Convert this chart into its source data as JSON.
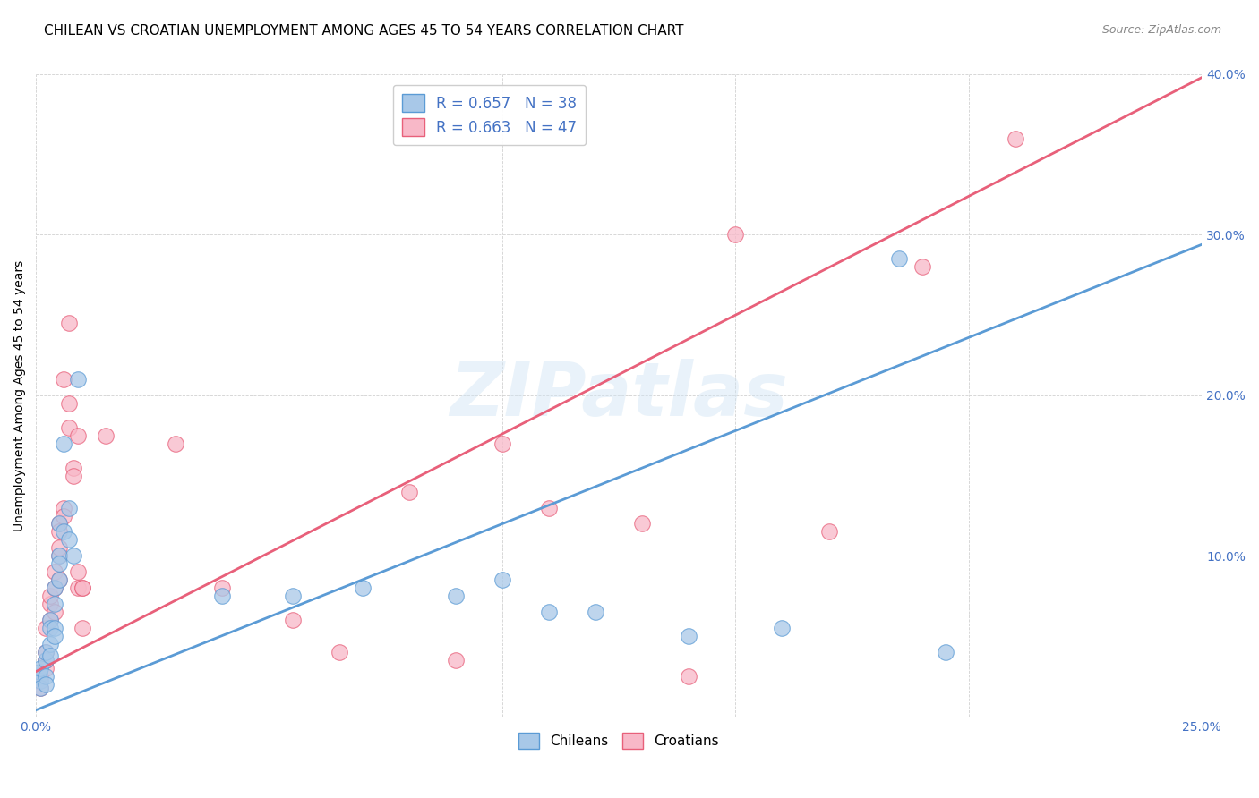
{
  "title": "CHILEAN VS CROATIAN UNEMPLOYMENT AMONG AGES 45 TO 54 YEARS CORRELATION CHART",
  "source": "Source: ZipAtlas.com",
  "ylabel": "Unemployment Among Ages 45 to 54 years",
  "xlim": [
    0.0,
    0.25
  ],
  "ylim": [
    0.0,
    0.4
  ],
  "xticks": [
    0.0,
    0.05,
    0.1,
    0.15,
    0.2,
    0.25
  ],
  "yticks": [
    0.0,
    0.1,
    0.2,
    0.3,
    0.4
  ],
  "chilean_color": "#a8c8e8",
  "croatian_color": "#f8b8c8",
  "chilean_line_color": "#5b9bd5",
  "croatian_line_color": "#e8607a",
  "legend_R_chilean": "0.657",
  "legend_N_chilean": "38",
  "legend_R_croatian": "0.663",
  "legend_N_croatian": "47",
  "watermark": "ZIPatlas",
  "chilean_slope": 1.16,
  "chilean_intercept": 0.004,
  "croatian_slope": 1.48,
  "croatian_intercept": 0.028,
  "chilean_points": [
    [
      0.0005,
      0.025
    ],
    [
      0.0007,
      0.028
    ],
    [
      0.001,
      0.022
    ],
    [
      0.001,
      0.03
    ],
    [
      0.001,
      0.018
    ],
    [
      0.002,
      0.035
    ],
    [
      0.002,
      0.04
    ],
    [
      0.002,
      0.025
    ],
    [
      0.002,
      0.02
    ],
    [
      0.003,
      0.045
    ],
    [
      0.003,
      0.06
    ],
    [
      0.003,
      0.055
    ],
    [
      0.003,
      0.038
    ],
    [
      0.004,
      0.08
    ],
    [
      0.004,
      0.07
    ],
    [
      0.004,
      0.055
    ],
    [
      0.004,
      0.05
    ],
    [
      0.005,
      0.1
    ],
    [
      0.005,
      0.095
    ],
    [
      0.005,
      0.085
    ],
    [
      0.005,
      0.12
    ],
    [
      0.006,
      0.115
    ],
    [
      0.006,
      0.17
    ],
    [
      0.007,
      0.13
    ],
    [
      0.007,
      0.11
    ],
    [
      0.008,
      0.1
    ],
    [
      0.009,
      0.21
    ],
    [
      0.04,
      0.075
    ],
    [
      0.055,
      0.075
    ],
    [
      0.07,
      0.08
    ],
    [
      0.09,
      0.075
    ],
    [
      0.1,
      0.085
    ],
    [
      0.11,
      0.065
    ],
    [
      0.12,
      0.065
    ],
    [
      0.14,
      0.05
    ],
    [
      0.16,
      0.055
    ],
    [
      0.185,
      0.285
    ],
    [
      0.195,
      0.04
    ]
  ],
  "croatian_points": [
    [
      0.0005,
      0.022
    ],
    [
      0.001,
      0.025
    ],
    [
      0.001,
      0.018
    ],
    [
      0.002,
      0.03
    ],
    [
      0.002,
      0.035
    ],
    [
      0.002,
      0.04
    ],
    [
      0.002,
      0.055
    ],
    [
      0.003,
      0.06
    ],
    [
      0.003,
      0.07
    ],
    [
      0.003,
      0.075
    ],
    [
      0.004,
      0.065
    ],
    [
      0.004,
      0.09
    ],
    [
      0.004,
      0.08
    ],
    [
      0.005,
      0.1
    ],
    [
      0.005,
      0.085
    ],
    [
      0.005,
      0.12
    ],
    [
      0.005,
      0.115
    ],
    [
      0.005,
      0.105
    ],
    [
      0.006,
      0.13
    ],
    [
      0.006,
      0.125
    ],
    [
      0.006,
      0.21
    ],
    [
      0.007,
      0.245
    ],
    [
      0.007,
      0.18
    ],
    [
      0.007,
      0.195
    ],
    [
      0.008,
      0.155
    ],
    [
      0.008,
      0.15
    ],
    [
      0.009,
      0.175
    ],
    [
      0.009,
      0.08
    ],
    [
      0.009,
      0.09
    ],
    [
      0.01,
      0.08
    ],
    [
      0.01,
      0.08
    ],
    [
      0.01,
      0.055
    ],
    [
      0.015,
      0.175
    ],
    [
      0.03,
      0.17
    ],
    [
      0.04,
      0.08
    ],
    [
      0.055,
      0.06
    ],
    [
      0.065,
      0.04
    ],
    [
      0.08,
      0.14
    ],
    [
      0.09,
      0.035
    ],
    [
      0.1,
      0.17
    ],
    [
      0.11,
      0.13
    ],
    [
      0.13,
      0.12
    ],
    [
      0.14,
      0.025
    ],
    [
      0.15,
      0.3
    ],
    [
      0.17,
      0.115
    ],
    [
      0.19,
      0.28
    ],
    [
      0.21,
      0.36
    ]
  ],
  "title_fontsize": 11,
  "axis_label_fontsize": 10,
  "tick_fontsize": 10,
  "legend_fontsize": 12
}
